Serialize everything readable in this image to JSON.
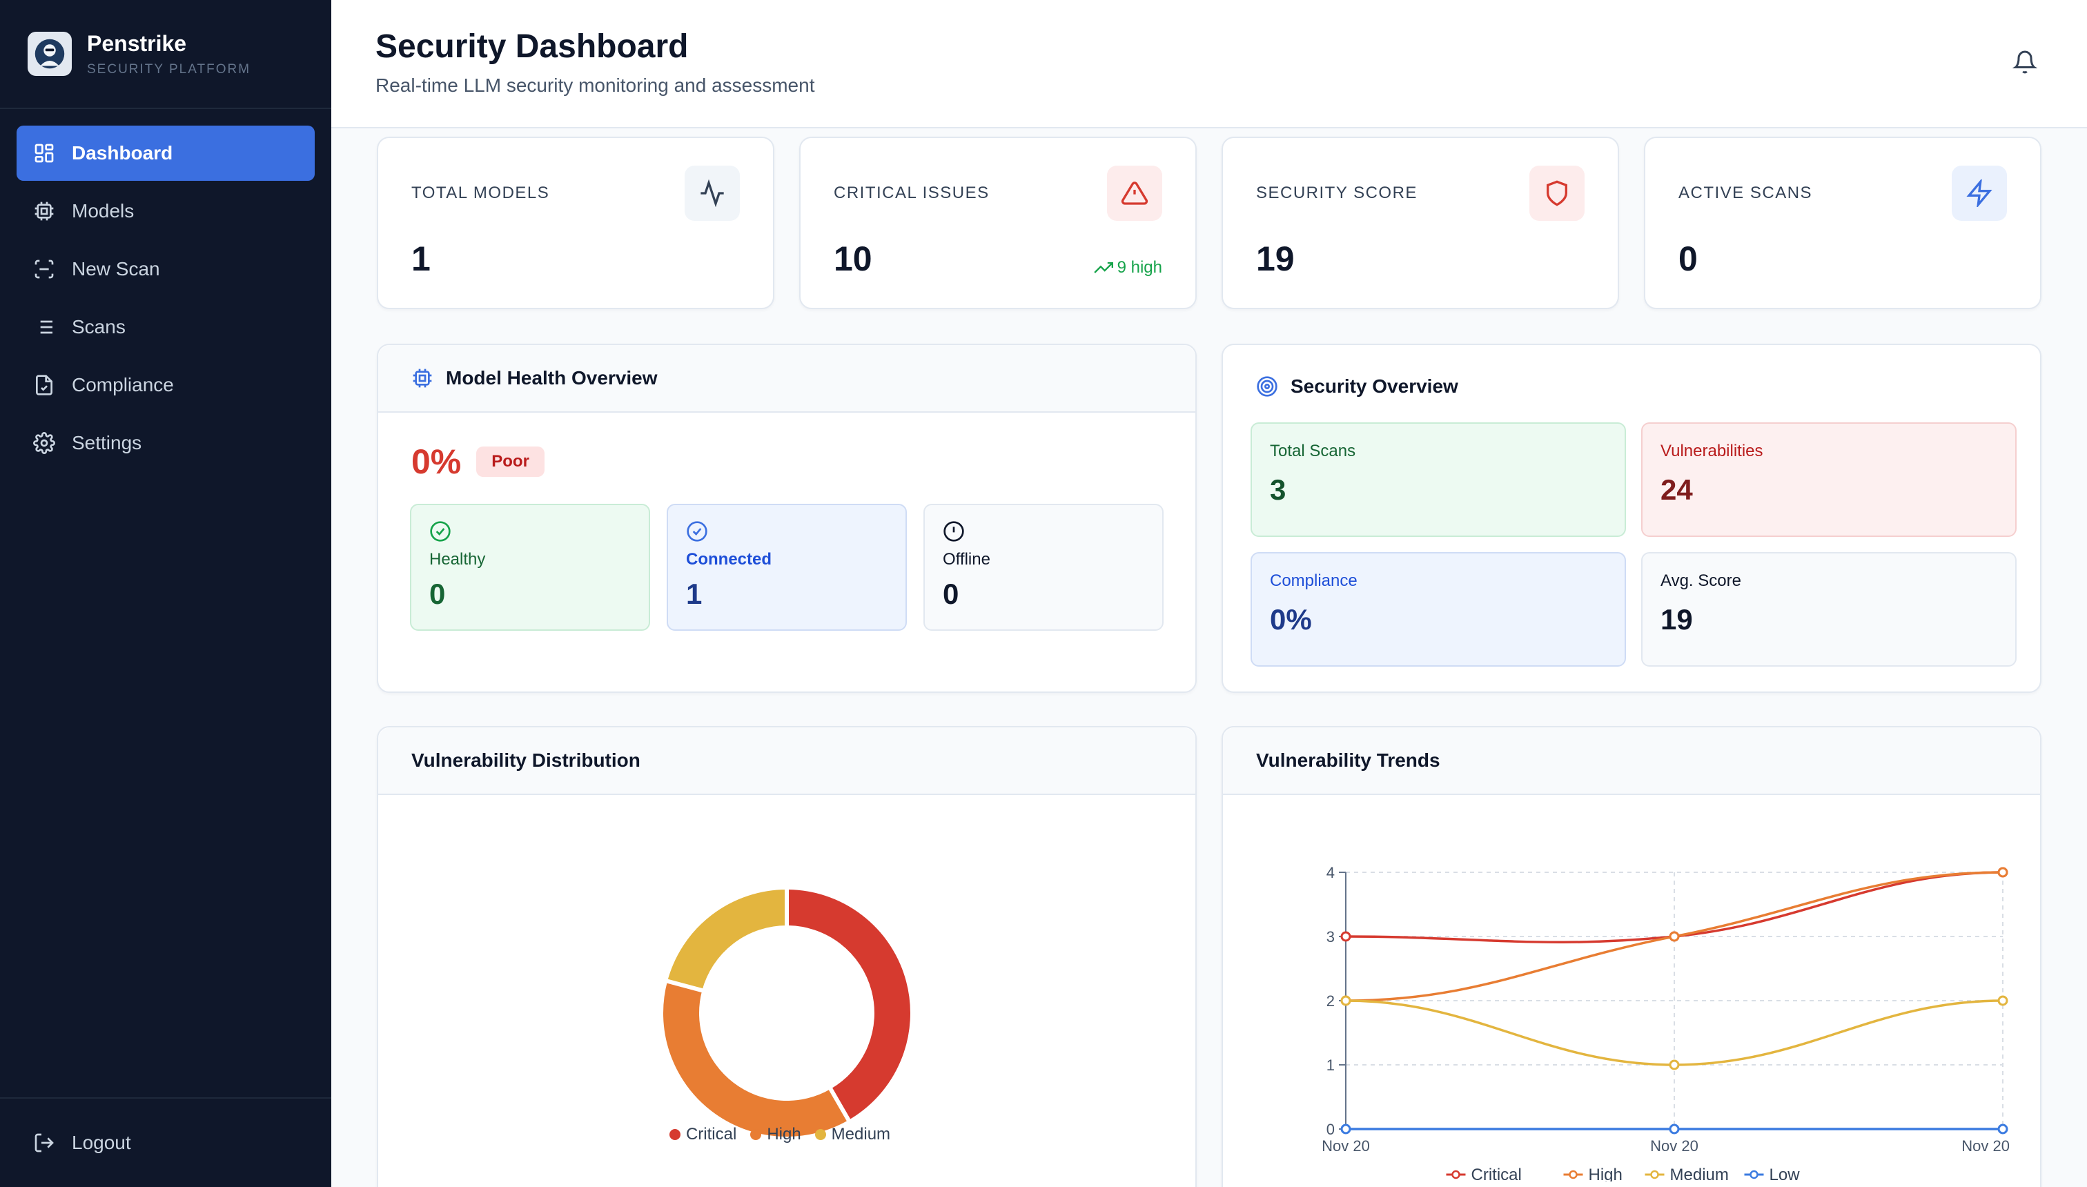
{
  "app": {
    "name": "Penstrike",
    "subtitle": "SECURITY PLATFORM"
  },
  "sidebar": {
    "items": [
      {
        "label": "Dashboard",
        "icon": "dashboard-icon",
        "active": true
      },
      {
        "label": "Models",
        "icon": "chip-icon"
      },
      {
        "label": "New Scan",
        "icon": "scan-icon"
      },
      {
        "label": "Scans",
        "icon": "list-icon"
      },
      {
        "label": "Compliance",
        "icon": "file-check-icon"
      },
      {
        "label": "Settings",
        "icon": "gear-icon"
      }
    ],
    "logout": "Logout"
  },
  "header": {
    "title": "Security Dashboard",
    "subtitle": "Real-time LLM security monitoring and assessment"
  },
  "stats": [
    {
      "label": "TOTAL MODELS",
      "value": "1",
      "icon": "activity-icon"
    },
    {
      "label": "CRITICAL ISSUES",
      "value": "10",
      "icon": "alert-triangle-icon",
      "trend": "9 high"
    },
    {
      "label": "SECURITY SCORE",
      "value": "19",
      "icon": "shield-icon"
    },
    {
      "label": "ACTIVE SCANS",
      "value": "0",
      "icon": "bolt-icon"
    }
  ],
  "health": {
    "title": "Model Health Overview",
    "percent": "0%",
    "rating": "Poor",
    "boxes": [
      {
        "label": "Healthy",
        "value": "0"
      },
      {
        "label": "Connected",
        "value": "1"
      },
      {
        "label": "Offline",
        "value": "0"
      }
    ]
  },
  "overview": {
    "title": "Security Overview",
    "cards": [
      {
        "label": "Total Scans",
        "value": "3"
      },
      {
        "label": "Vulnerabilities",
        "value": "24"
      },
      {
        "label": "Compliance",
        "value": "0%"
      },
      {
        "label": "Avg. Score",
        "value": "19"
      }
    ]
  },
  "colors": {
    "critical": "#d63a2f",
    "high": "#e87d33",
    "medium": "#e3b53f",
    "low": "#3b7be0",
    "accent": "#3b6fe0"
  },
  "chart_data": [
    {
      "type": "pie",
      "title": "Vulnerability Distribution",
      "categories": [
        "Critical",
        "High",
        "Medium"
      ],
      "values": [
        10,
        9,
        5
      ],
      "donut": true,
      "legend": "bottom"
    },
    {
      "type": "line",
      "title": "Vulnerability Trends",
      "x": [
        "Nov 20",
        "Nov 20",
        "Nov 20"
      ],
      "ylim": [
        0,
        4
      ],
      "yticks": [
        "0",
        "1",
        "2",
        "3",
        "4"
      ],
      "grid": true,
      "legend": "bottom",
      "series": [
        {
          "name": "Critical",
          "values": [
            3,
            3,
            4
          ]
        },
        {
          "name": "High",
          "values": [
            2,
            3,
            4
          ]
        },
        {
          "name": "Medium",
          "values": [
            2,
            1,
            2
          ]
        },
        {
          "name": "Low",
          "values": [
            0,
            0,
            0
          ]
        }
      ]
    }
  ]
}
